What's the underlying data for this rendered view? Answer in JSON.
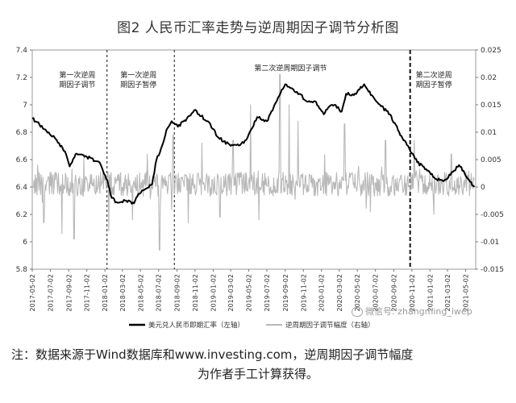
{
  "figure": {
    "title": "图2 人民币汇率走势与逆周期因子调节分析图",
    "note_line1": "注：数据来源于Wind数据库和www.investing.com，逆周期因子调节幅度",
    "note_line2": "为作者手工计算获得。",
    "watermark": "微信号: zhangming_iwep"
  },
  "chart_data": {
    "type": "line",
    "title": "",
    "x": [
      "2017-05-02",
      "2017-07-02",
      "2017-09-02",
      "2017-11-02",
      "2018-01-02",
      "2018-03-02",
      "2018-05-02",
      "2018-07-02",
      "2018-09-02",
      "2018-11-02",
      "2019-01-02",
      "2019-03-02",
      "2019-05-02",
      "2019-07-02",
      "2019-09-02",
      "2019-11-02",
      "2020-01-02",
      "2020-03-02",
      "2020-05-02",
      "2020-07-02",
      "2020-09-02",
      "2020-11-02",
      "2021-01-02",
      "2021-03-02",
      "2021-05-02"
    ],
    "y_left_ticks": [
      "5.8",
      "6",
      "6.2",
      "6.4",
      "6.6",
      "6.8",
      "7",
      "7.2",
      "7.4"
    ],
    "y_right_ticks": [
      "-0.015",
      "-0.01",
      "-0.005",
      "0",
      "0.005",
      "0.01",
      "0.015",
      "0.02",
      "0.025"
    ],
    "ylim_left": [
      5.8,
      7.4
    ],
    "ylim_right": [
      -0.015,
      0.025
    ],
    "series": [
      {
        "name": "美元兑人民币即期汇率（左轴）",
        "axis": "left",
        "color": "#000000",
        "keypoints": [
          [
            "2017-05-02",
            6.9
          ],
          [
            "2017-06-15",
            6.82
          ],
          [
            "2017-07-20",
            6.75
          ],
          [
            "2017-08-20",
            6.66
          ],
          [
            "2017-09-05",
            6.55
          ],
          [
            "2017-09-25",
            6.64
          ],
          [
            "2017-11-02",
            6.62
          ],
          [
            "2017-12-15",
            6.58
          ],
          [
            "2018-01-10",
            6.45
          ],
          [
            "2018-01-25",
            6.32
          ],
          [
            "2018-02-10",
            6.29
          ],
          [
            "2018-03-15",
            6.3
          ],
          [
            "2018-04-10",
            6.28
          ],
          [
            "2018-04-25",
            6.35
          ],
          [
            "2018-05-15",
            6.38
          ],
          [
            "2018-06-10",
            6.42
          ],
          [
            "2018-06-25",
            6.6
          ],
          [
            "2018-07-10",
            6.68
          ],
          [
            "2018-08-01",
            6.83
          ],
          [
            "2018-08-15",
            6.88
          ],
          [
            "2018-09-05",
            6.84
          ],
          [
            "2018-10-05",
            6.9
          ],
          [
            "2018-10-30",
            6.96
          ],
          [
            "2018-11-15",
            6.93
          ],
          [
            "2018-12-15",
            6.88
          ],
          [
            "2019-01-20",
            6.76
          ],
          [
            "2019-03-02",
            6.7
          ],
          [
            "2019-04-15",
            6.72
          ],
          [
            "2019-05-10",
            6.82
          ],
          [
            "2019-05-30",
            6.91
          ],
          [
            "2019-07-02",
            6.88
          ],
          [
            "2019-08-05",
            7.03
          ],
          [
            "2019-09-02",
            7.15
          ],
          [
            "2019-09-25",
            7.12
          ],
          [
            "2019-10-20",
            7.08
          ],
          [
            "2019-11-10",
            7.03
          ],
          [
            "2019-12-15",
            7.02
          ],
          [
            "2020-01-10",
            6.93
          ],
          [
            "2020-01-25",
            6.98
          ],
          [
            "2020-02-15",
            7.0
          ],
          [
            "2020-03-10",
            6.95
          ],
          [
            "2020-03-25",
            7.08
          ],
          [
            "2020-04-20",
            7.07
          ],
          [
            "2020-05-25",
            7.15
          ],
          [
            "2020-06-20",
            7.07
          ],
          [
            "2020-07-20",
            6.99
          ],
          [
            "2020-08-20",
            6.93
          ],
          [
            "2020-09-20",
            6.8
          ],
          [
            "2020-10-20",
            6.7
          ],
          [
            "2020-11-20",
            6.58
          ],
          [
            "2020-12-20",
            6.53
          ],
          [
            "2021-01-20",
            6.46
          ],
          [
            "2021-02-20",
            6.45
          ],
          [
            "2021-03-20",
            6.51
          ],
          [
            "2021-04-10",
            6.56
          ],
          [
            "2021-05-10",
            6.46
          ],
          [
            "2021-06-01",
            6.4
          ]
        ]
      },
      {
        "name": "逆周期因子调节幅度（右轴）",
        "axis": "right",
        "color": "#b8b8b8",
        "baseline": 0.0005,
        "amplitude": 0.0022,
        "spikes": [
          [
            "2017-05-20",
            0.004
          ],
          [
            "2017-06-10",
            -0.0065
          ],
          [
            "2017-08-10",
            -0.0085
          ],
          [
            "2017-09-20",
            -0.0095
          ],
          [
            "2018-01-15",
            -0.008
          ],
          [
            "2018-04-05",
            -0.006
          ],
          [
            "2018-05-25",
            0.006
          ],
          [
            "2018-07-05",
            -0.0115
          ],
          [
            "2018-08-20",
            0.0095
          ],
          [
            "2018-10-10",
            -0.0065
          ],
          [
            "2018-11-25",
            0.008
          ],
          [
            "2019-01-25",
            -0.0055
          ],
          [
            "2019-03-10",
            0.0085
          ],
          [
            "2019-05-08",
            0.015
          ],
          [
            "2019-06-05",
            -0.006
          ],
          [
            "2019-08-15",
            0.0205
          ],
          [
            "2019-09-15",
            0.015
          ],
          [
            "2019-10-15",
            0.012
          ],
          [
            "2020-03-20",
            0.0115
          ],
          [
            "2020-06-15",
            -0.0045
          ],
          [
            "2020-08-05",
            0.0085
          ],
          [
            "2020-11-10",
            0.0085
          ],
          [
            "2021-01-15",
            -0.005
          ],
          [
            "2021-03-15",
            0.006
          ]
        ]
      }
    ],
    "regime_markers": [
      {
        "date": "2018-01-09",
        "style": "dashed"
      },
      {
        "date": "2018-08-24",
        "style": "dashed"
      },
      {
        "date": "2020-10-27",
        "style": "bold-dashed"
      }
    ],
    "annotations": [
      {
        "text_lines": [
          "第一次逆周",
          "期因子调节"
        ],
        "date": "2017-10-01",
        "y": 7.2
      },
      {
        "text_lines": [
          "第一次逆周",
          "期因子暂停"
        ],
        "date": "2018-04-25",
        "y": 7.2
      },
      {
        "text_lines": [
          "第二次逆周期因子调节"
        ],
        "date": "2019-09-20",
        "y": 7.25
      },
      {
        "text_lines": [
          "第二次逆周",
          "期因子暂停"
        ],
        "date": "2021-01-15",
        "y": 7.2
      }
    ],
    "legend": {
      "position": "bottom"
    },
    "grid": false
  }
}
